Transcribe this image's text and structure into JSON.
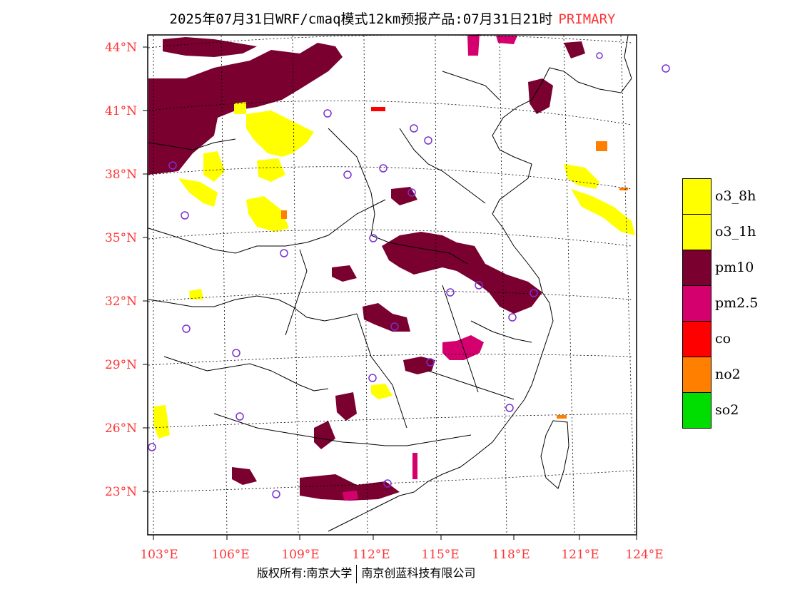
{
  "title": {
    "main": "2025年07月31日WRF/cmaq模式12km预报产品:07月31日21时",
    "tag": "PRIMARY"
  },
  "axes": {
    "lat_labels": [
      "44°N",
      "41°N",
      "38°N",
      "35°N",
      "32°N",
      "29°N",
      "26°N",
      "23°N"
    ],
    "lon_labels": [
      "103°E",
      "106°E",
      "109°E",
      "112°E",
      "115°E",
      "118°E",
      "121°E",
      "124°E"
    ]
  },
  "legend": [
    {
      "label": "o3_8h",
      "color": "#ffff00"
    },
    {
      "label": "o3_1h",
      "color": "#ffff00"
    },
    {
      "label": "pm10",
      "color": "#7a0030"
    },
    {
      "label": "pm2.5",
      "color": "#d4006e"
    },
    {
      "label": "co",
      "color": "#ff0000"
    },
    {
      "label": "no2",
      "color": "#ff7f00"
    },
    {
      "label": "so2",
      "color": "#00dd00"
    }
  ],
  "footer": {
    "left": "版权所有:南京大学",
    "right": "南京创蓝科技有限公司"
  },
  "colors": {
    "axis_label": "#ff3333",
    "station_marker": "#7b2fd1"
  }
}
